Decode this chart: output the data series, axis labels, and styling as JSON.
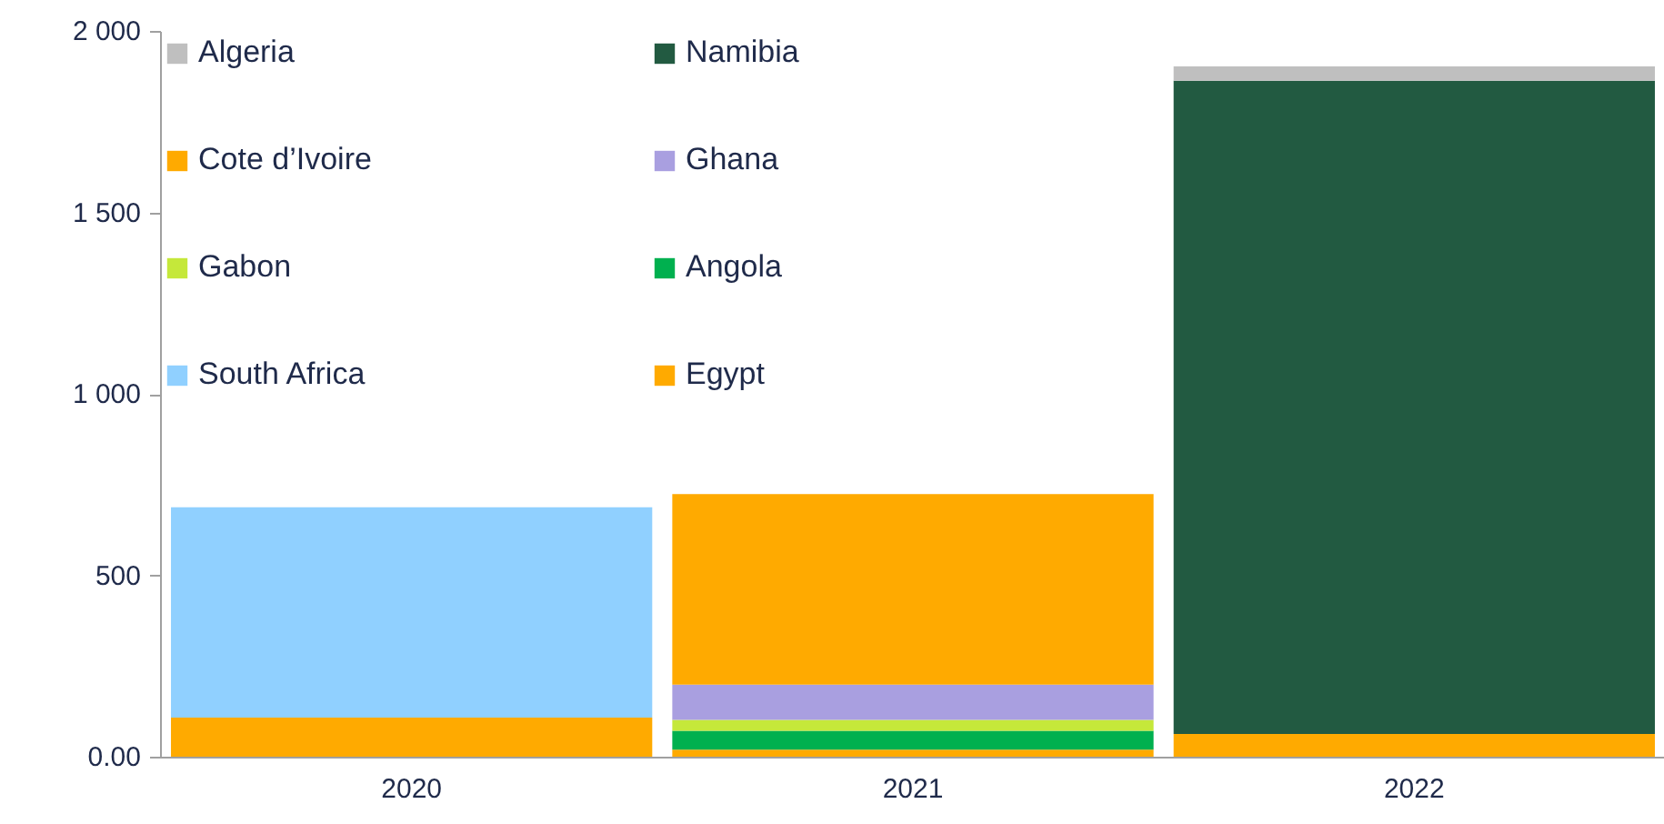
{
  "chart_data": {
    "type": "bar",
    "stacked": true,
    "categories": [
      "2020",
      "2021",
      "2022"
    ],
    "series": [
      {
        "name": "Egypt",
        "color": "#ffaa00",
        "values": [
          110,
          22,
          65
        ]
      },
      {
        "name": "South Africa",
        "color": "#90d0ff",
        "values": [
          580,
          null,
          null
        ]
      },
      {
        "name": "Angola",
        "color": "#00b04f",
        "values": [
          null,
          52,
          null
        ]
      },
      {
        "name": "Gabon",
        "color": "#c5e83a",
        "values": [
          null,
          30,
          null
        ]
      },
      {
        "name": "Ghana",
        "color": "#a99fe0",
        "values": [
          null,
          97,
          null
        ]
      },
      {
        "name": "Cote d’Ivoire",
        "color": "#ffaa00",
        "values": [
          null,
          525,
          null
        ]
      },
      {
        "name": "Namibia",
        "color": "#225a41",
        "values": [
          null,
          null,
          1800
        ]
      },
      {
        "name": "Algeria",
        "color": "#bfbfbf",
        "values": [
          null,
          null,
          40
        ]
      }
    ],
    "ylim": [
      0,
      2000
    ],
    "yticks": [
      {
        "value": 0,
        "label": "0.00"
      },
      500,
      {
        "value": 1000,
        "label": "1 000"
      },
      {
        "value": 1500,
        "label": "1 500"
      },
      {
        "value": 2000,
        "label": "2 000"
      }
    ],
    "grid": false,
    "legend": "top left"
  }
}
